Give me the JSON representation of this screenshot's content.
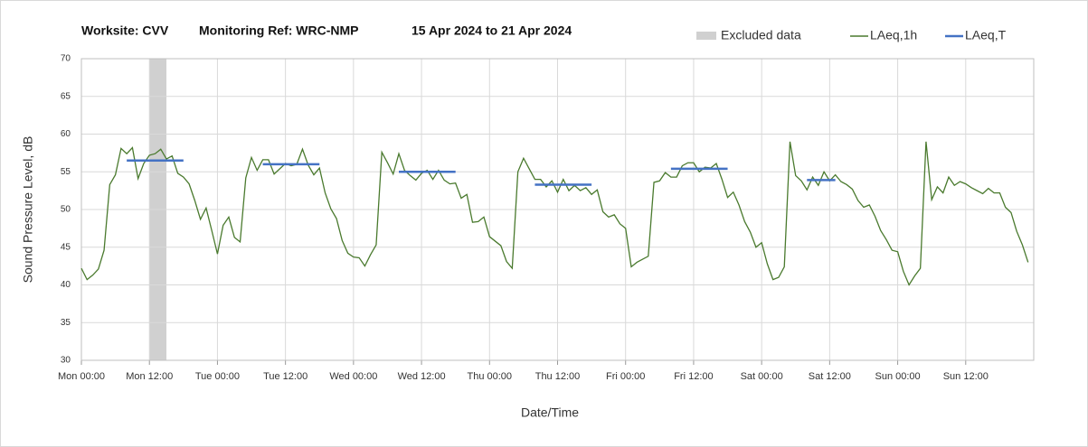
{
  "chart_data": {
    "type": "line",
    "title": [
      "Worksite: CVV",
      "Monitoring Ref: WRC-NMP",
      "15 Apr 2024 to 21 Apr 2024"
    ],
    "ylabel": "Sound Pressure Level, dB",
    "xlabel": "Date/Time",
    "xlim": [
      0,
      168
    ],
    "ylim": [
      30,
      70
    ],
    "yticks": [
      30,
      35,
      40,
      45,
      50,
      55,
      60,
      65,
      70
    ],
    "xticks": [
      {
        "value": 0,
        "label": "Mon 00:00"
      },
      {
        "value": 12,
        "label": "Mon 12:00"
      },
      {
        "value": 24,
        "label": "Tue 00:00"
      },
      {
        "value": 36,
        "label": "Tue 12:00"
      },
      {
        "value": 48,
        "label": "Wed 00:00"
      },
      {
        "value": 60,
        "label": "Wed 12:00"
      },
      {
        "value": 72,
        "label": "Thu 00:00"
      },
      {
        "value": 84,
        "label": "Thu 12:00"
      },
      {
        "value": 96,
        "label": "Fri 00:00"
      },
      {
        "value": 108,
        "label": "Fri 12:00"
      },
      {
        "value": 120,
        "label": "Sat 00:00"
      },
      {
        "value": 132,
        "label": "Sat 12:00"
      },
      {
        "value": 144,
        "label": "Sun 00:00"
      },
      {
        "value": 156,
        "label": "Sun 12:00"
      }
    ],
    "grid": true,
    "excluded": {
      "name": "Excluded data",
      "color": "#d0d0d0",
      "start": 12,
      "end": 15
    },
    "series": [
      {
        "name": "LAeq,1h",
        "color": "#4a7a2e",
        "x": [
          0,
          1,
          2,
          3,
          4,
          5,
          6,
          7,
          8,
          9,
          10,
          11,
          12,
          13,
          14,
          15,
          16,
          17,
          18,
          19,
          20,
          21,
          22,
          23,
          24,
          25,
          26,
          27,
          28,
          29,
          30,
          31,
          32,
          33,
          34,
          35,
          36,
          37,
          38,
          39,
          40,
          41,
          42,
          43,
          44,
          45,
          46,
          47,
          48,
          49,
          50,
          51,
          52,
          53,
          54,
          55,
          56,
          57,
          58,
          59,
          60,
          61,
          62,
          63,
          64,
          65,
          66,
          67,
          68,
          69,
          70,
          71,
          72,
          73,
          74,
          75,
          76,
          77,
          78,
          79,
          80,
          81,
          82,
          83,
          84,
          85,
          86,
          87,
          88,
          89,
          90,
          91,
          92,
          93,
          94,
          95,
          96,
          97,
          98,
          99,
          100,
          101,
          102,
          103,
          104,
          105,
          106,
          107,
          108,
          109,
          110,
          111,
          112,
          113,
          114,
          115,
          116,
          117,
          118,
          119,
          120,
          121,
          122,
          123,
          124,
          125,
          126,
          127,
          128,
          129,
          130,
          131,
          132,
          133,
          134,
          135,
          136,
          137,
          138,
          139,
          140,
          141,
          142,
          143,
          144,
          145,
          146,
          147,
          148,
          149,
          150,
          151,
          152,
          153,
          154,
          155,
          156,
          157,
          158,
          159,
          160,
          161,
          162,
          163,
          164,
          165,
          166,
          167
        ],
        "values": [
          42.2,
          40.7,
          41.3,
          42.1,
          44.6,
          53.3,
          54.6,
          58.1,
          57.4,
          58.2,
          54.1,
          56.1,
          57.2,
          57.4,
          58.0,
          56.7,
          57.1,
          54.8,
          54.3,
          53.4,
          51.2,
          48.7,
          50.2,
          47.2,
          44.1,
          47.9,
          49.0,
          46.3,
          45.7,
          54.2,
          56.9,
          55.2,
          56.6,
          56.6,
          54.7,
          55.4,
          56.1,
          55.8,
          56.0,
          58.0,
          55.9,
          54.6,
          55.5,
          52.2,
          50.1,
          48.8,
          45.9,
          44.2,
          43.7,
          43.6,
          42.5,
          44.0,
          45.3,
          57.6,
          56.2,
          54.7,
          57.4,
          55.2,
          54.5,
          53.9,
          54.8,
          55.2,
          54.0,
          55.2,
          53.9,
          53.4,
          53.5,
          51.5,
          52.0,
          48.3,
          48.4,
          49.0,
          46.4,
          45.8,
          45.2,
          43.1,
          42.2,
          55.0,
          56.8,
          55.4,
          54.0,
          54.0,
          53.0,
          53.8,
          52.3,
          54.0,
          52.5,
          53.2,
          52.5,
          52.9,
          52.0,
          52.6,
          49.7,
          49.0,
          49.3,
          48.1,
          47.5,
          42.4,
          43.0,
          43.4,
          43.8,
          53.6,
          53.8,
          54.9,
          54.3,
          54.3,
          55.8,
          56.2,
          56.2,
          55.0,
          55.6,
          55.5,
          56.1,
          54.0,
          51.6,
          52.3,
          50.6,
          48.4,
          47.0,
          45.0,
          45.6,
          42.8,
          40.7,
          41.0,
          42.4,
          59.0,
          54.5,
          53.8,
          52.6,
          54.3,
          53.2,
          55.0,
          53.8,
          54.6,
          53.7,
          53.3,
          52.7,
          51.2,
          50.3,
          50.6,
          49.1,
          47.2,
          46.0,
          44.6,
          44.4,
          41.8,
          40.0,
          41.2,
          42.2,
          59.0,
          51.3,
          53.0,
          52.2,
          54.3,
          53.2,
          53.7,
          53.4,
          52.9,
          52.5,
          52.1,
          52.8,
          52.2,
          52.2,
          50.3,
          49.6,
          47.1,
          45.3,
          43.0
        ]
      },
      {
        "name": "LAeq,T",
        "color": "#4472c4",
        "periods": [
          {
            "start": 8,
            "end": 18,
            "value": 56.5
          },
          {
            "start": 32,
            "end": 42,
            "value": 56.0
          },
          {
            "start": 56,
            "end": 66,
            "value": 55.0
          },
          {
            "start": 80,
            "end": 90,
            "value": 53.3
          },
          {
            "start": 104,
            "end": 114,
            "value": 55.4
          },
          {
            "start": 128,
            "end": 133,
            "value": 53.9
          }
        ]
      }
    ]
  }
}
